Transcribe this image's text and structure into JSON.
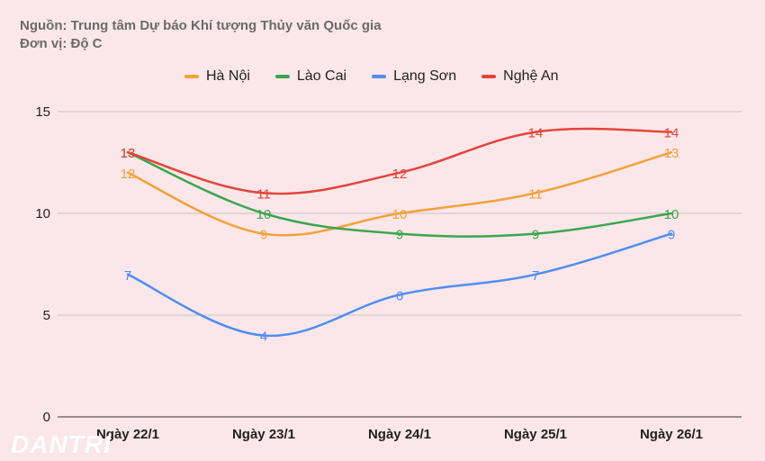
{
  "header": {
    "source": "Nguồn: Trung tâm Dự báo Khí tượng Thủy văn Quốc gia",
    "unit": "Đơn vị: Độ C"
  },
  "watermark": "DANTRI",
  "chart_data": {
    "type": "line",
    "title": "",
    "xlabel": "",
    "ylabel": "",
    "categories": [
      "Ngày 22/1",
      "Ngày 23/1",
      "Ngày 24/1",
      "Ngày 25/1",
      "Ngày 26/1"
    ],
    "ylim": [
      0,
      15
    ],
    "yticks": [
      0,
      5,
      10,
      15
    ],
    "grid": true,
    "legend_position": "top",
    "smooth": true,
    "series": [
      {
        "name": "Hà Nội",
        "color": "#f4a13a",
        "values": [
          12,
          9,
          10,
          11,
          13
        ]
      },
      {
        "name": "Lào Cai",
        "color": "#3aa64c",
        "values": [
          13,
          10,
          9,
          9,
          10
        ]
      },
      {
        "name": "Lạng Sơn",
        "color": "#4f8ef0",
        "values": [
          7,
          4,
          6,
          7,
          9
        ]
      },
      {
        "name": "Nghệ An",
        "color": "#e5443a",
        "values": [
          13,
          11,
          12,
          14,
          14
        ]
      }
    ]
  }
}
